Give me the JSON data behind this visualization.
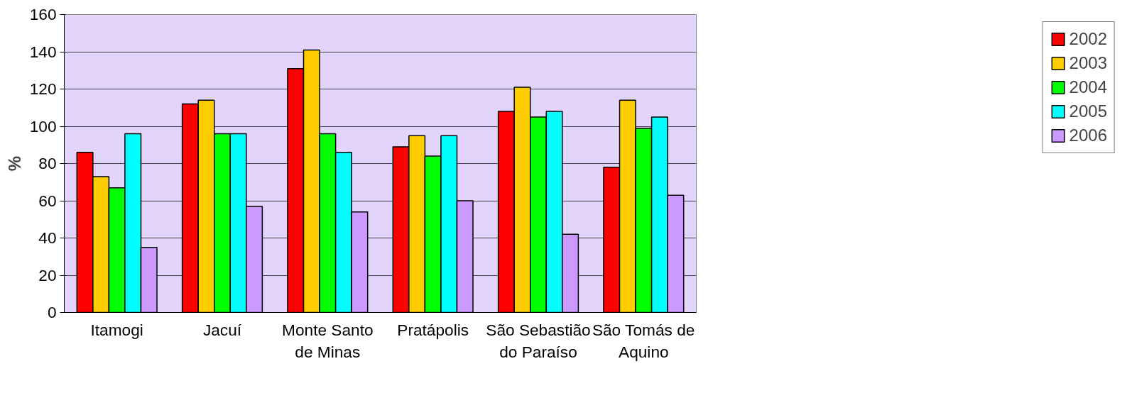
{
  "chart_data": {
    "type": "bar",
    "ylabel": "%",
    "categories": [
      "Itamogi",
      "Jacuí",
      "Monte Santo de Minas",
      "Pratápolis",
      "São Sebastião do Paraíso",
      "São Tomás de Aquino"
    ],
    "series": [
      {
        "name": "2002",
        "color": "#ff0000",
        "values": [
          86,
          112,
          131,
          89,
          108,
          78
        ]
      },
      {
        "name": "2003",
        "color": "#ffcc00",
        "values": [
          73,
          114,
          141,
          95,
          121,
          114
        ]
      },
      {
        "name": "2004",
        "color": "#00ff00",
        "values": [
          67,
          96,
          96,
          84,
          105,
          99
        ]
      },
      {
        "name": "2005",
        "color": "#00ffff",
        "values": [
          96,
          96,
          86,
          95,
          108,
          105
        ]
      },
      {
        "name": "2006",
        "color": "#cc99ff",
        "values": [
          35,
          57,
          54,
          60,
          42,
          63
        ]
      }
    ],
    "ylim": [
      0,
      160
    ],
    "yticks": [
      0,
      20,
      40,
      60,
      80,
      100,
      120,
      140,
      160
    ],
    "grid": "y",
    "legend": "right"
  }
}
